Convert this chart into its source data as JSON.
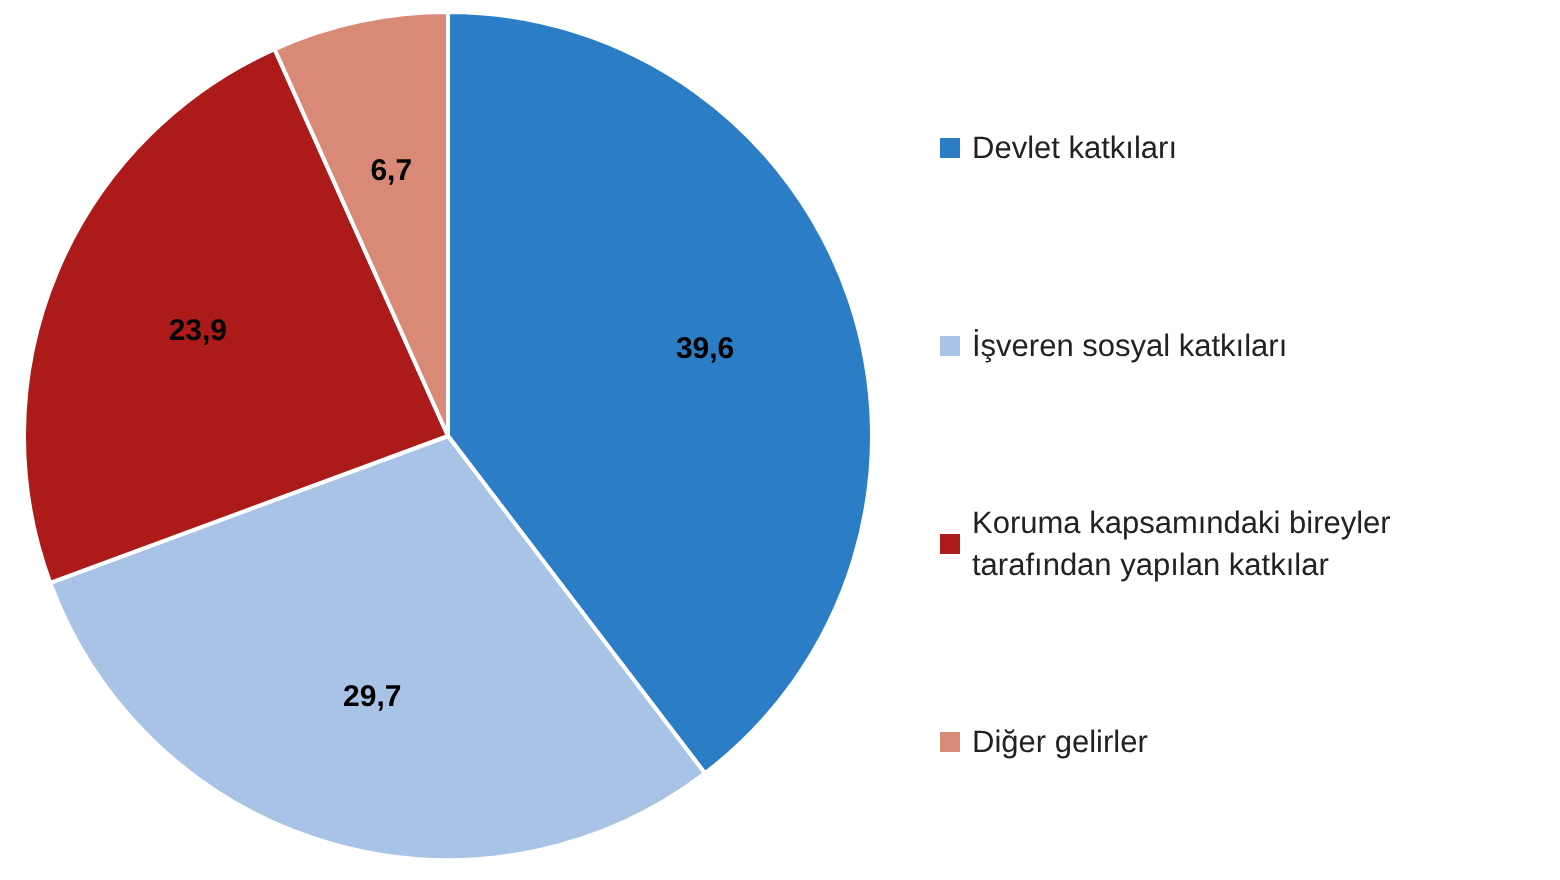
{
  "chart_data": {
    "type": "pie",
    "categories": [
      "Devlet katkıları",
      "İşveren sosyal katkıları",
      "Koruma kapsamındaki bireyler tarafından yapılan katkılar",
      "Diğer gelirler"
    ],
    "values": [
      39.6,
      29.7,
      23.9,
      6.7
    ],
    "colors": [
      "#2b7dc6",
      "#a8c3e6",
      "#ad1a1a",
      "#d98a76"
    ],
    "value_labels": [
      "39,6",
      "29,7",
      "23,9",
      "6,7"
    ],
    "legend": "right"
  }
}
